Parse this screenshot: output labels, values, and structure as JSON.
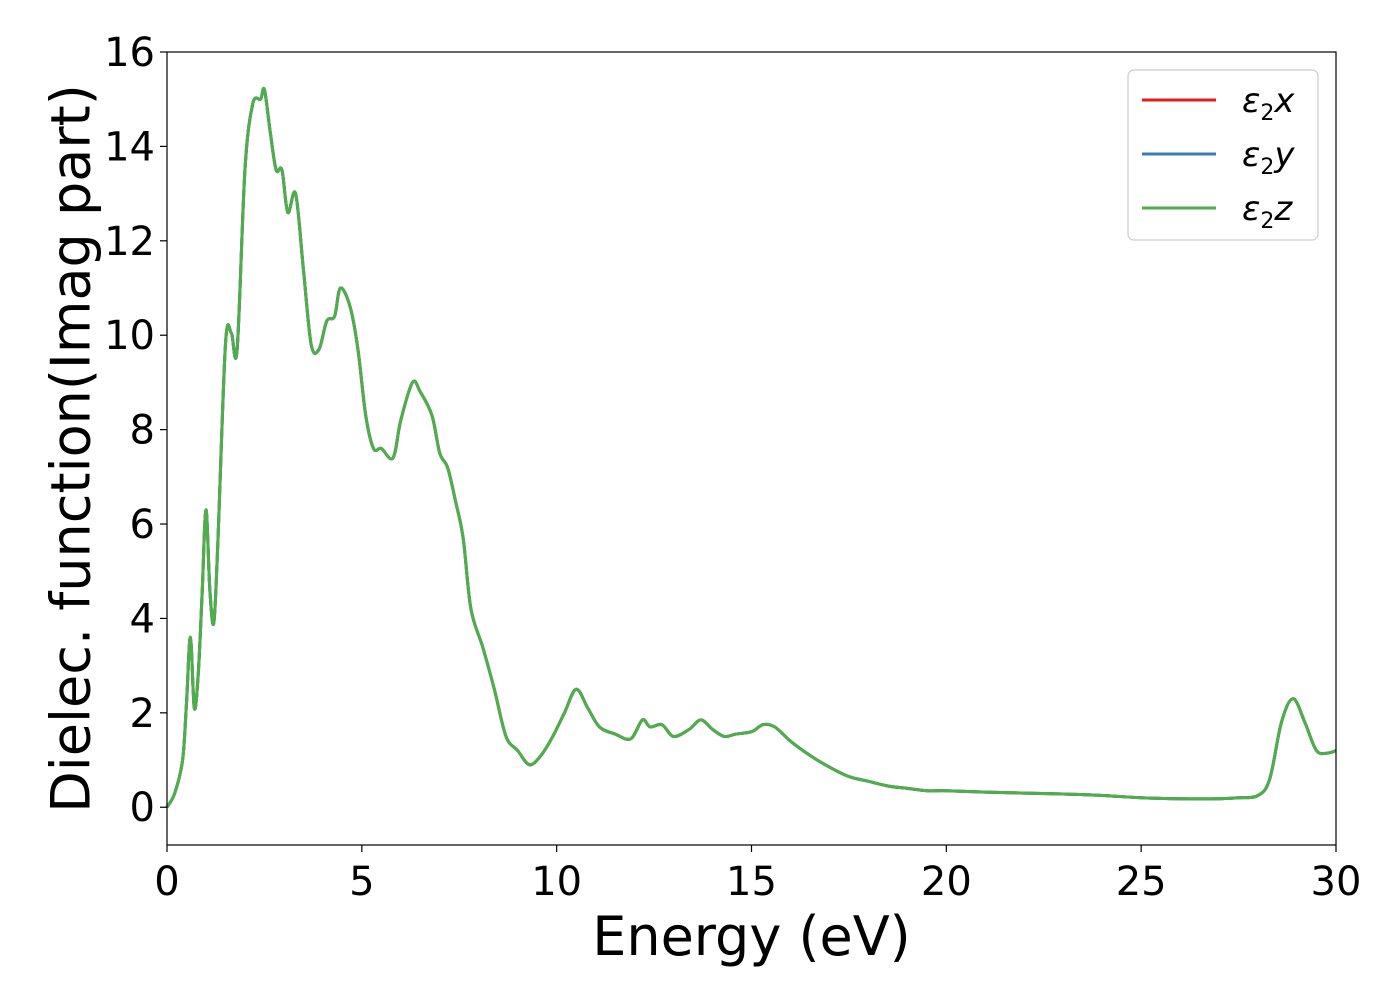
{
  "chart_data": {
    "type": "line",
    "xlabel": "Energy (eV)",
    "ylabel": "Dielec. function(Imag part)",
    "xlim": [
      0,
      30
    ],
    "ylim": [
      -0.8,
      16
    ],
    "xticks": [
      0,
      5,
      10,
      15,
      20,
      25,
      30
    ],
    "yticks": [
      0,
      2,
      4,
      6,
      8,
      10,
      12,
      14,
      16
    ],
    "grid": false,
    "legend_position": "top-right",
    "legend": [
      {
        "base": "ε",
        "sub": "2",
        "var": "x",
        "color": "#e41a1c"
      },
      {
        "base": "ε",
        "sub": "2",
        "var": "y",
        "color": "#377eb8"
      },
      {
        "base": "ε",
        "sub": "2",
        "var": "z",
        "color": "#4daf4a"
      }
    ],
    "x": [
      0,
      0.2,
      0.4,
      0.5,
      0.6,
      0.7,
      0.8,
      0.9,
      1.0,
      1.1,
      1.2,
      1.3,
      1.5,
      1.65,
      1.8,
      2.0,
      2.2,
      2.4,
      2.5,
      2.65,
      2.8,
      2.95,
      3.1,
      3.3,
      3.5,
      3.7,
      3.9,
      4.1,
      4.3,
      4.45,
      4.7,
      4.9,
      5.1,
      5.3,
      5.5,
      5.8,
      6.0,
      6.3,
      6.5,
      6.8,
      7.0,
      7.2,
      7.4,
      7.6,
      7.8,
      8.1,
      8.4,
      8.7,
      9.0,
      9.3,
      9.6,
      9.9,
      10.2,
      10.5,
      10.8,
      11.1,
      11.5,
      11.9,
      12.2,
      12.4,
      12.7,
      13.0,
      13.4,
      13.7,
      14.0,
      14.3,
      14.6,
      15.0,
      15.3,
      15.6,
      16.0,
      16.5,
      17.0,
      17.5,
      18.0,
      18.5,
      19.0,
      19.5,
      20.0,
      21.0,
      22.0,
      23.0,
      24.0,
      25.0,
      26.0,
      27.0,
      27.5,
      28.0,
      28.3,
      28.6,
      28.9,
      29.2,
      29.5,
      29.8,
      30.0
    ],
    "series": [
      {
        "name": "ε2x",
        "color": "#e41a1c",
        "values": [
          0,
          0.3,
          1.0,
          2.2,
          3.6,
          2.1,
          2.8,
          4.5,
          6.3,
          4.6,
          3.9,
          5.5,
          9.8,
          10.05,
          9.7,
          13.5,
          14.9,
          15.0,
          15.2,
          14.3,
          13.5,
          13.5,
          12.6,
          13.0,
          11.4,
          9.8,
          9.7,
          10.3,
          10.4,
          11.0,
          10.6,
          9.7,
          8.3,
          7.6,
          7.6,
          7.4,
          8.2,
          9.0,
          8.8,
          8.3,
          7.5,
          7.2,
          6.5,
          5.7,
          4.2,
          3.4,
          2.5,
          1.5,
          1.2,
          0.9,
          1.1,
          1.5,
          2.0,
          2.5,
          2.1,
          1.7,
          1.55,
          1.45,
          1.85,
          1.7,
          1.75,
          1.5,
          1.65,
          1.85,
          1.65,
          1.5,
          1.55,
          1.6,
          1.75,
          1.7,
          1.4,
          1.1,
          0.85,
          0.65,
          0.55,
          0.45,
          0.4,
          0.35,
          0.35,
          0.32,
          0.3,
          0.28,
          0.25,
          0.2,
          0.18,
          0.18,
          0.2,
          0.25,
          0.6,
          1.8,
          2.3,
          1.8,
          1.2,
          1.15,
          1.2
        ]
      },
      {
        "name": "ε2y",
        "color": "#377eb8",
        "values": [
          0,
          0.3,
          1.0,
          2.2,
          3.6,
          2.1,
          2.8,
          4.5,
          6.3,
          4.6,
          3.9,
          5.5,
          9.8,
          10.05,
          9.7,
          13.5,
          14.9,
          15.0,
          15.2,
          14.3,
          13.5,
          13.5,
          12.6,
          13.0,
          11.4,
          9.8,
          9.7,
          10.3,
          10.4,
          11.0,
          10.6,
          9.7,
          8.3,
          7.6,
          7.6,
          7.4,
          8.2,
          9.0,
          8.8,
          8.3,
          7.5,
          7.2,
          6.5,
          5.7,
          4.2,
          3.4,
          2.5,
          1.5,
          1.2,
          0.9,
          1.1,
          1.5,
          2.0,
          2.5,
          2.1,
          1.7,
          1.55,
          1.45,
          1.85,
          1.7,
          1.75,
          1.5,
          1.65,
          1.85,
          1.65,
          1.5,
          1.55,
          1.6,
          1.75,
          1.7,
          1.4,
          1.1,
          0.85,
          0.65,
          0.55,
          0.45,
          0.4,
          0.35,
          0.35,
          0.32,
          0.3,
          0.28,
          0.25,
          0.2,
          0.18,
          0.18,
          0.2,
          0.25,
          0.6,
          1.8,
          2.3,
          1.8,
          1.2,
          1.15,
          1.2
        ]
      },
      {
        "name": "ε2z",
        "color": "#4daf4a",
        "values": [
          0,
          0.3,
          1.0,
          2.2,
          3.6,
          2.1,
          2.8,
          4.5,
          6.3,
          4.6,
          3.9,
          5.5,
          9.8,
          10.05,
          9.7,
          13.5,
          14.9,
          15.0,
          15.2,
          14.3,
          13.5,
          13.5,
          12.6,
          13.0,
          11.4,
          9.8,
          9.7,
          10.3,
          10.4,
          11.0,
          10.6,
          9.7,
          8.3,
          7.6,
          7.6,
          7.4,
          8.2,
          9.0,
          8.8,
          8.3,
          7.5,
          7.2,
          6.5,
          5.7,
          4.2,
          3.4,
          2.5,
          1.5,
          1.2,
          0.9,
          1.1,
          1.5,
          2.0,
          2.5,
          2.1,
          1.7,
          1.55,
          1.45,
          1.85,
          1.7,
          1.75,
          1.5,
          1.65,
          1.85,
          1.65,
          1.5,
          1.55,
          1.6,
          1.75,
          1.7,
          1.4,
          1.1,
          0.85,
          0.65,
          0.55,
          0.45,
          0.4,
          0.35,
          0.35,
          0.32,
          0.3,
          0.28,
          0.25,
          0.2,
          0.18,
          0.18,
          0.2,
          0.25,
          0.6,
          1.8,
          2.3,
          1.8,
          1.2,
          1.15,
          1.2
        ]
      }
    ]
  }
}
